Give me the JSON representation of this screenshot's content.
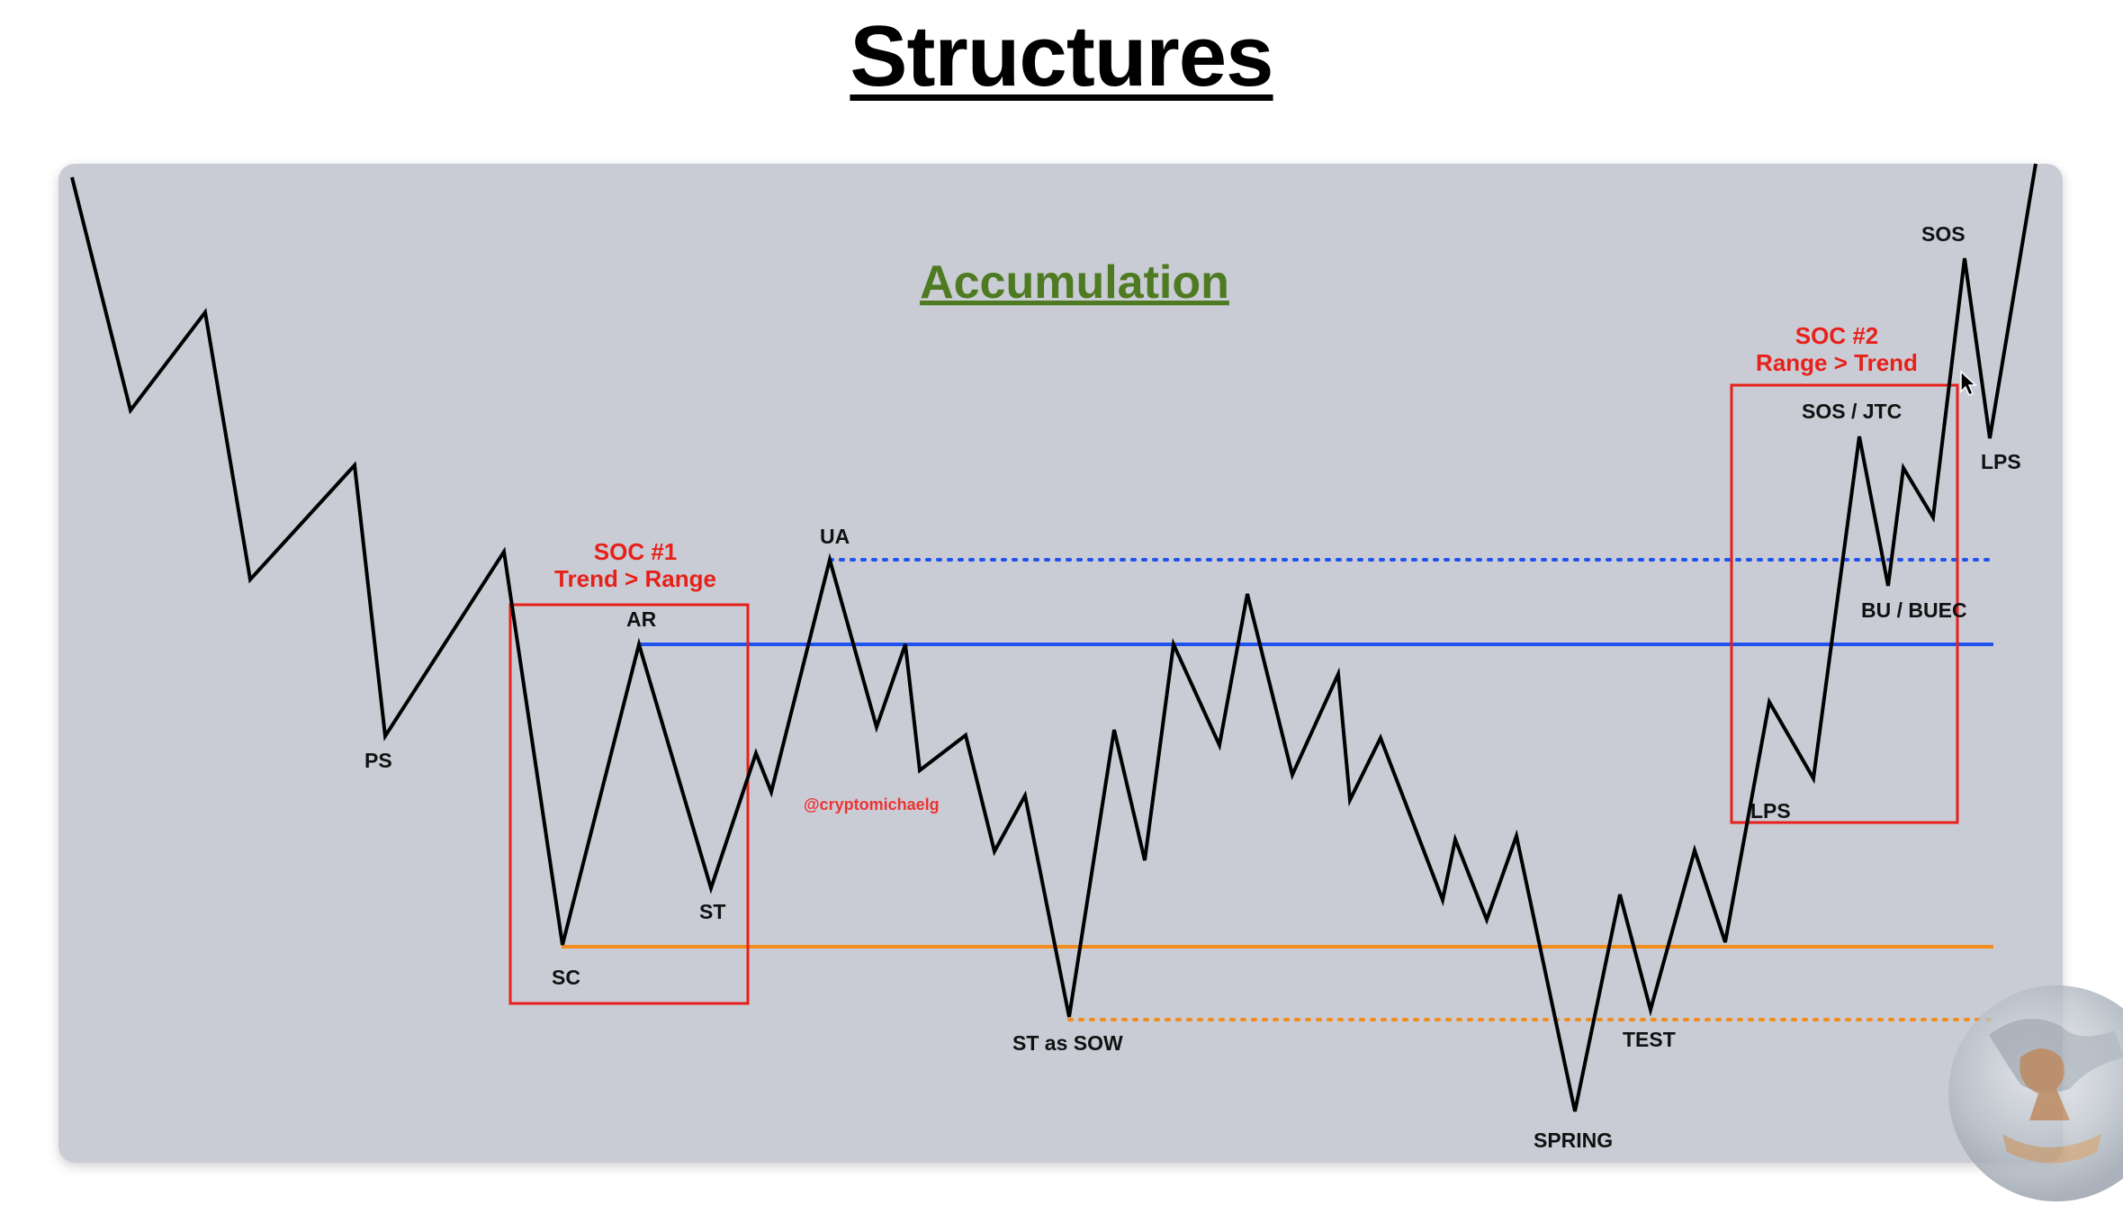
{
  "page": {
    "title": "Structures"
  },
  "diagram": {
    "subtitle": "Accumulation",
    "watermark": "@cryptomichaelg",
    "colors": {
      "panel": "#c9ccd5",
      "price": "#000000",
      "range_high": "#2052f0",
      "range_low": "#f28c1c",
      "soc_box": "#e8201a",
      "subtitle": "#4e7a22"
    },
    "labels": {
      "ps": "PS",
      "sc": "SC",
      "ar": "AR",
      "st": "ST",
      "ua": "UA",
      "st_as_sow": "ST as SOW",
      "spring": "SPRING",
      "test": "TEST",
      "lps_inner": "LPS",
      "bu_buec": "BU / BUEC",
      "sos_jtc": "SOS / JTC",
      "sos": "SOS",
      "lps_outer": "LPS"
    },
    "soc1": {
      "line1": "SOC #1",
      "line2": "Trend > Range"
    },
    "soc2": {
      "line1": "SOC #2",
      "line2": "Range > Trend"
    }
  }
}
